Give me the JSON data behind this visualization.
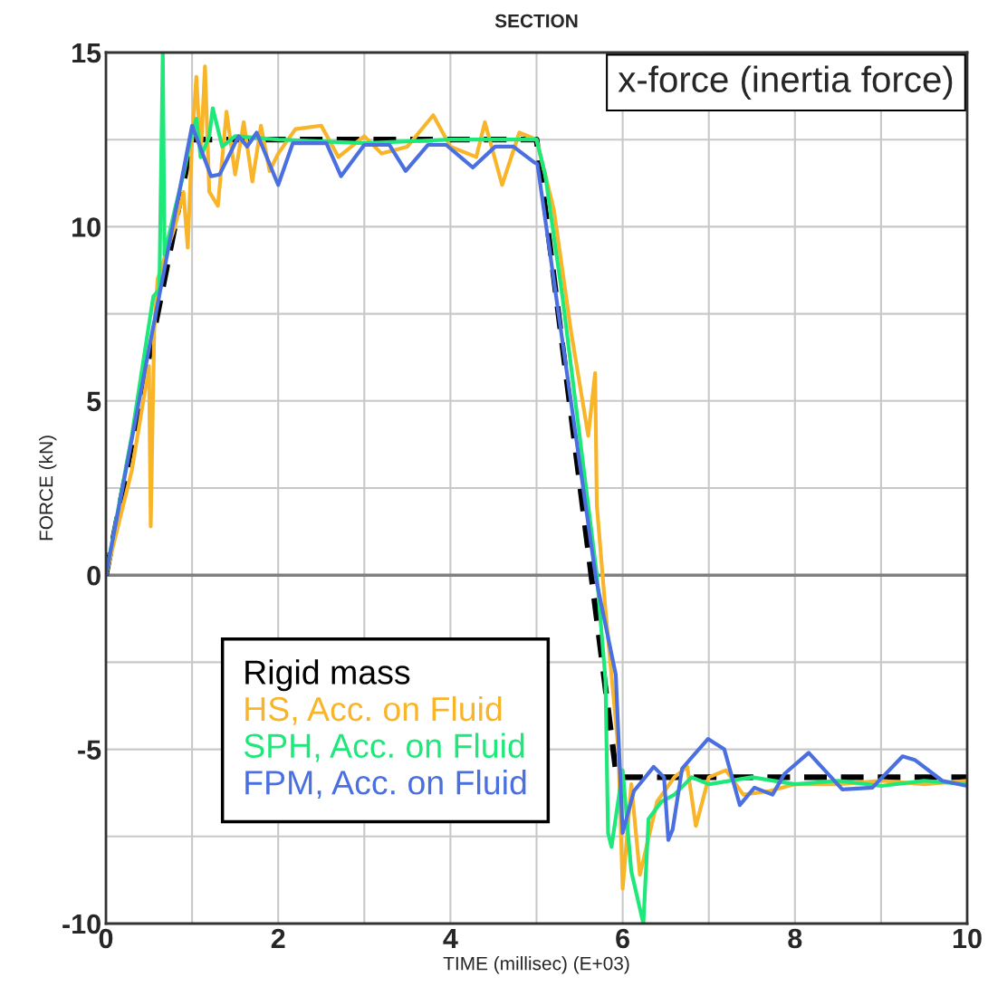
{
  "chart_data": {
    "type": "line",
    "title": "SECTION",
    "xlabel": "TIME (millisec) (E+03)",
    "ylabel": "FORCE (kN)",
    "annotations": [
      "x-force (inertia force)"
    ],
    "xlim": [
      0,
      10
    ],
    "ylim": [
      -10,
      15
    ],
    "xticks": [
      0,
      {
        "value": 1,
        "label": null
      },
      2,
      {
        "value": 3,
        "label": null
      },
      4,
      {
        "value": 5,
        "label": null
      },
      6,
      {
        "value": 7,
        "label": null
      },
      8,
      {
        "value": 9,
        "label": null
      },
      10
    ],
    "yticks": [
      -10,
      {
        "value": -7.5,
        "label": null
      },
      -5,
      {
        "value": -2.5,
        "label": null
      },
      0,
      {
        "value": 2.5,
        "label": null
      },
      5,
      {
        "value": 7.5,
        "label": null
      },
      10,
      {
        "value": 12.5,
        "label": null
      },
      15
    ],
    "grid": true,
    "legend": "bottom left",
    "ref_lines": [
      {
        "axis": "y",
        "value": 0,
        "color": "#808080"
      }
    ],
    "series": [
      {
        "name": "Rigid mass",
        "color": "#000000",
        "line_style": "dashed",
        "x": [
          0,
          1.0,
          5.0,
          5.93,
          10
        ],
        "values": [
          0,
          12.5,
          12.5,
          -5.8,
          -5.8
        ]
      },
      {
        "name": "HS, Acc. on Fluid",
        "color": "#f9b52a",
        "x": [
          0,
          0.3,
          0.5,
          0.52,
          0.56,
          0.6,
          0.8,
          0.9,
          0.95,
          1.0,
          1.05,
          1.1,
          1.15,
          1.2,
          1.3,
          1.4,
          1.5,
          1.6,
          1.7,
          1.8,
          1.9,
          2.0,
          2.2,
          2.5,
          2.7,
          3.0,
          3.2,
          3.5,
          3.8,
          4.0,
          4.3,
          4.4,
          4.6,
          4.8,
          5.0,
          5.2,
          5.4,
          5.6,
          5.68,
          5.7,
          5.8,
          5.95,
          6.0,
          6.1,
          6.2,
          6.4,
          6.6,
          6.75,
          6.85,
          7.0,
          7.2,
          7.4,
          7.7,
          8.0,
          8.5,
          9.0,
          9.5,
          10
        ],
        "values": [
          0,
          3,
          6,
          1.4,
          7,
          8.5,
          10,
          11,
          9.4,
          12.5,
          14.3,
          12,
          14.6,
          11,
          10.6,
          13.3,
          11.5,
          13,
          11.3,
          12.9,
          11.6,
          12.1,
          12.8,
          12.9,
          12,
          12.6,
          12.1,
          12.3,
          13.2,
          12.3,
          12.0,
          13.0,
          11.2,
          12.7,
          12.5,
          10.5,
          7,
          4,
          5.8,
          2,
          -1,
          -5,
          -9.0,
          -6,
          -8.6,
          -6.5,
          -5.8,
          -5.5,
          -7.2,
          -5.8,
          -5.6,
          -6.3,
          -6.2,
          -6.0,
          -6.0,
          -5.9,
          -6.0,
          -5.9
        ]
      },
      {
        "name": "SPH, Acc. on Fluid",
        "color": "#1ee87a",
        "x": [
          0,
          0.3,
          0.55,
          0.62,
          0.66,
          0.68,
          0.8,
          0.9,
          1.0,
          1.05,
          1.1,
          1.2,
          1.24,
          1.35,
          1.5,
          2.0,
          3.0,
          4.0,
          5.0,
          5.1,
          5.3,
          5.5,
          5.7,
          5.8,
          5.83,
          5.87,
          6.0,
          6.1,
          6.24,
          6.3,
          6.45,
          6.6,
          6.8,
          7.0,
          7.5,
          8.0,
          8.5,
          9.0,
          9.5,
          10
        ],
        "values": [
          0,
          4,
          8,
          8.2,
          15,
          9.2,
          10.5,
          11.5,
          12.7,
          13.1,
          12.0,
          12.6,
          13.4,
          12.3,
          12.6,
          12.5,
          12.4,
          12.5,
          12.5,
          11.5,
          8,
          4,
          0,
          -3,
          -7.4,
          -7.8,
          -5.6,
          -8.5,
          -10,
          -7,
          -6.5,
          -6.3,
          -5.8,
          -6.0,
          -5.8,
          -6.0,
          -5.9,
          -6.05,
          -5.9,
          -6.0
        ]
      },
      {
        "name": "FPM, Acc. on Fluid",
        "color": "#4a6fe0",
        "x": [
          0,
          0.5,
          1.0,
          1.22,
          1.32,
          1.54,
          1.64,
          1.75,
          2.0,
          2.17,
          2.56,
          2.73,
          3.0,
          3.29,
          3.48,
          3.74,
          3.95,
          4.26,
          4.52,
          4.73,
          4.97,
          5.01,
          5.69,
          5.92,
          6.0,
          6.13,
          6.36,
          6.48,
          6.53,
          6.58,
          6.69,
          6.99,
          7.18,
          7.36,
          7.53,
          7.74,
          7.88,
          8.16,
          8.55,
          8.9,
          9.25,
          9.39,
          9.71,
          10
        ],
        "values": [
          0,
          6.5,
          12.9,
          11.45,
          11.5,
          12.6,
          12.3,
          12.7,
          11.2,
          12.4,
          12.4,
          11.45,
          12.35,
          12.35,
          11.6,
          12.35,
          12.35,
          11.7,
          12.3,
          12.3,
          11.85,
          11.8,
          -0.1,
          -2.86,
          -7.4,
          -6.2,
          -5.5,
          -5.8,
          -7.6,
          -7.3,
          -5.55,
          -4.7,
          -5.0,
          -6.6,
          -6.1,
          -6.3,
          -5.7,
          -5.1,
          -6.15,
          -6.1,
          -5.2,
          -5.3,
          -5.9,
          -6.05
        ]
      }
    ]
  }
}
